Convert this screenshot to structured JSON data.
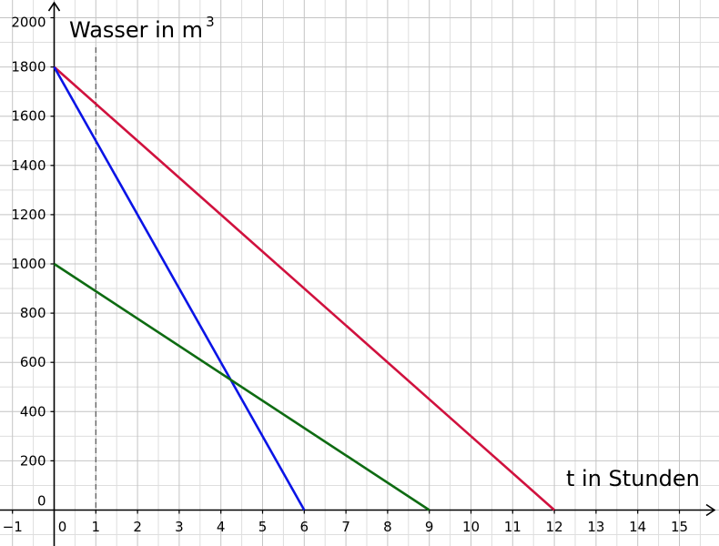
{
  "chart_data": {
    "type": "line",
    "ylabel": "Wasser in m",
    "ylabel_superscript": "3",
    "xlabel": "t in Stunden",
    "xlim": [
      -1.3,
      15.9
    ],
    "ylim": [
      -120,
      2000
    ],
    "grid": true,
    "x_ticks": [
      "−1",
      "0",
      "1",
      "2",
      "3",
      "4",
      "5",
      "6",
      "7",
      "8",
      "9",
      "10",
      "11",
      "12",
      "13",
      "14",
      "15"
    ],
    "y_ticks": [
      "0",
      "200",
      "400",
      "600",
      "800",
      "1000",
      "1200",
      "1400",
      "1600",
      "1800",
      "2000"
    ],
    "series": [
      {
        "color": "#d0113e",
        "x": [
          0,
          12
        ],
        "y": [
          1800,
          0
        ]
      },
      {
        "color": "#0a14e6",
        "x": [
          0,
          6
        ],
        "y": [
          1800,
          0
        ]
      },
      {
        "color": "#0e6b12",
        "x": [
          0,
          9
        ],
        "y": [
          1000,
          0
        ]
      }
    ],
    "reference_line": {
      "x": 1,
      "style": "dashed",
      "color": "#555555"
    }
  }
}
